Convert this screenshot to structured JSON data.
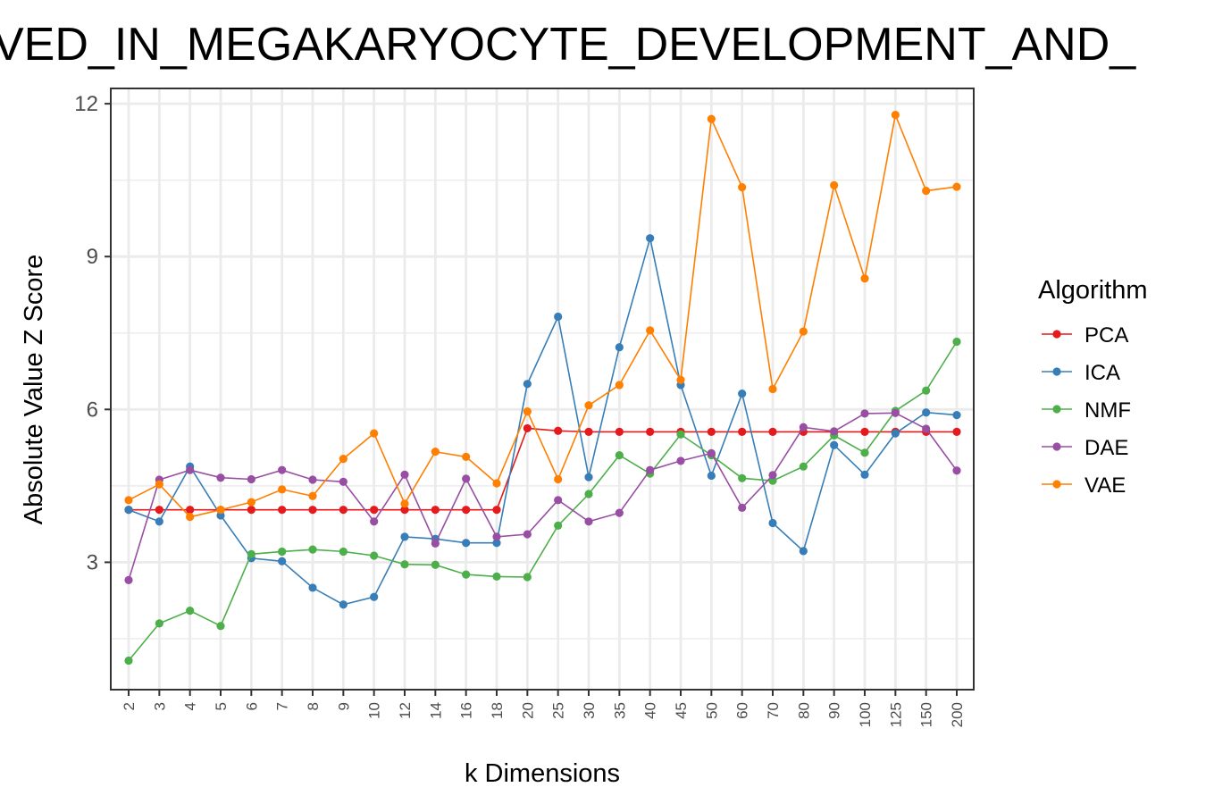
{
  "chart_data": {
    "type": "line",
    "title": "VED_IN_MEGAKARYOCYTE_DEVELOPMENT_AND_",
    "xlabel": "k Dimensions",
    "ylabel": "Absolute Value Z Score",
    "categories": [
      "2",
      "3",
      "4",
      "5",
      "6",
      "7",
      "8",
      "9",
      "10",
      "12",
      "14",
      "16",
      "18",
      "20",
      "25",
      "30",
      "35",
      "40",
      "45",
      "50",
      "60",
      "70",
      "80",
      "90",
      "100",
      "125",
      "150",
      "200"
    ],
    "yticks": [
      3,
      6,
      9,
      12
    ],
    "ylim": [
      0.5,
      12.3
    ],
    "grid": true,
    "legend": {
      "title": "Algorithm",
      "position": "right"
    },
    "series": [
      {
        "name": "PCA",
        "color": "#e41a1c",
        "values": [
          4.03,
          4.03,
          4.03,
          4.03,
          4.03,
          4.03,
          4.03,
          4.03,
          4.03,
          4.03,
          4.03,
          4.03,
          4.03,
          5.63,
          5.58,
          5.56,
          5.56,
          5.56,
          5.56,
          5.56,
          5.56,
          5.56,
          5.56,
          5.56,
          5.56,
          5.56,
          5.56,
          5.56
        ]
      },
      {
        "name": "ICA",
        "color": "#377eb8",
        "values": [
          4.03,
          3.8,
          4.88,
          3.92,
          3.08,
          3.02,
          2.5,
          2.17,
          2.32,
          3.5,
          3.46,
          3.38,
          3.38,
          6.5,
          7.82,
          4.67,
          7.22,
          9.36,
          6.48,
          4.7,
          6.31,
          3.77,
          3.22,
          5.3,
          4.72,
          5.53,
          5.94,
          5.89
        ]
      },
      {
        "name": "NMF",
        "color": "#4daf4a",
        "values": [
          1.07,
          1.8,
          2.05,
          1.75,
          3.16,
          3.21,
          3.25,
          3.21,
          3.13,
          2.96,
          2.95,
          2.76,
          2.72,
          2.71,
          3.72,
          4.34,
          5.1,
          4.74,
          5.51,
          5.1,
          4.65,
          4.6,
          4.88,
          5.49,
          5.15,
          5.97,
          6.37,
          7.33
        ]
      },
      {
        "name": "DAE",
        "color": "#984ea3",
        "values": [
          2.65,
          4.62,
          4.81,
          4.66,
          4.63,
          4.81,
          4.62,
          4.58,
          3.8,
          4.72,
          3.37,
          4.64,
          3.5,
          3.55,
          4.22,
          3.8,
          3.97,
          4.81,
          4.99,
          5.14,
          4.07,
          4.71,
          5.65,
          5.57,
          5.92,
          5.93,
          5.62,
          4.8
        ]
      },
      {
        "name": "VAE",
        "color": "#ff7f00",
        "values": [
          4.22,
          4.53,
          3.89,
          4.03,
          4.18,
          4.43,
          4.3,
          5.03,
          5.53,
          4.15,
          5.17,
          5.07,
          4.55,
          5.96,
          4.63,
          6.08,
          6.48,
          7.55,
          6.58,
          11.7,
          10.36,
          6.4,
          7.53,
          10.4,
          8.57,
          11.78,
          10.29,
          10.37
        ]
      }
    ]
  }
}
